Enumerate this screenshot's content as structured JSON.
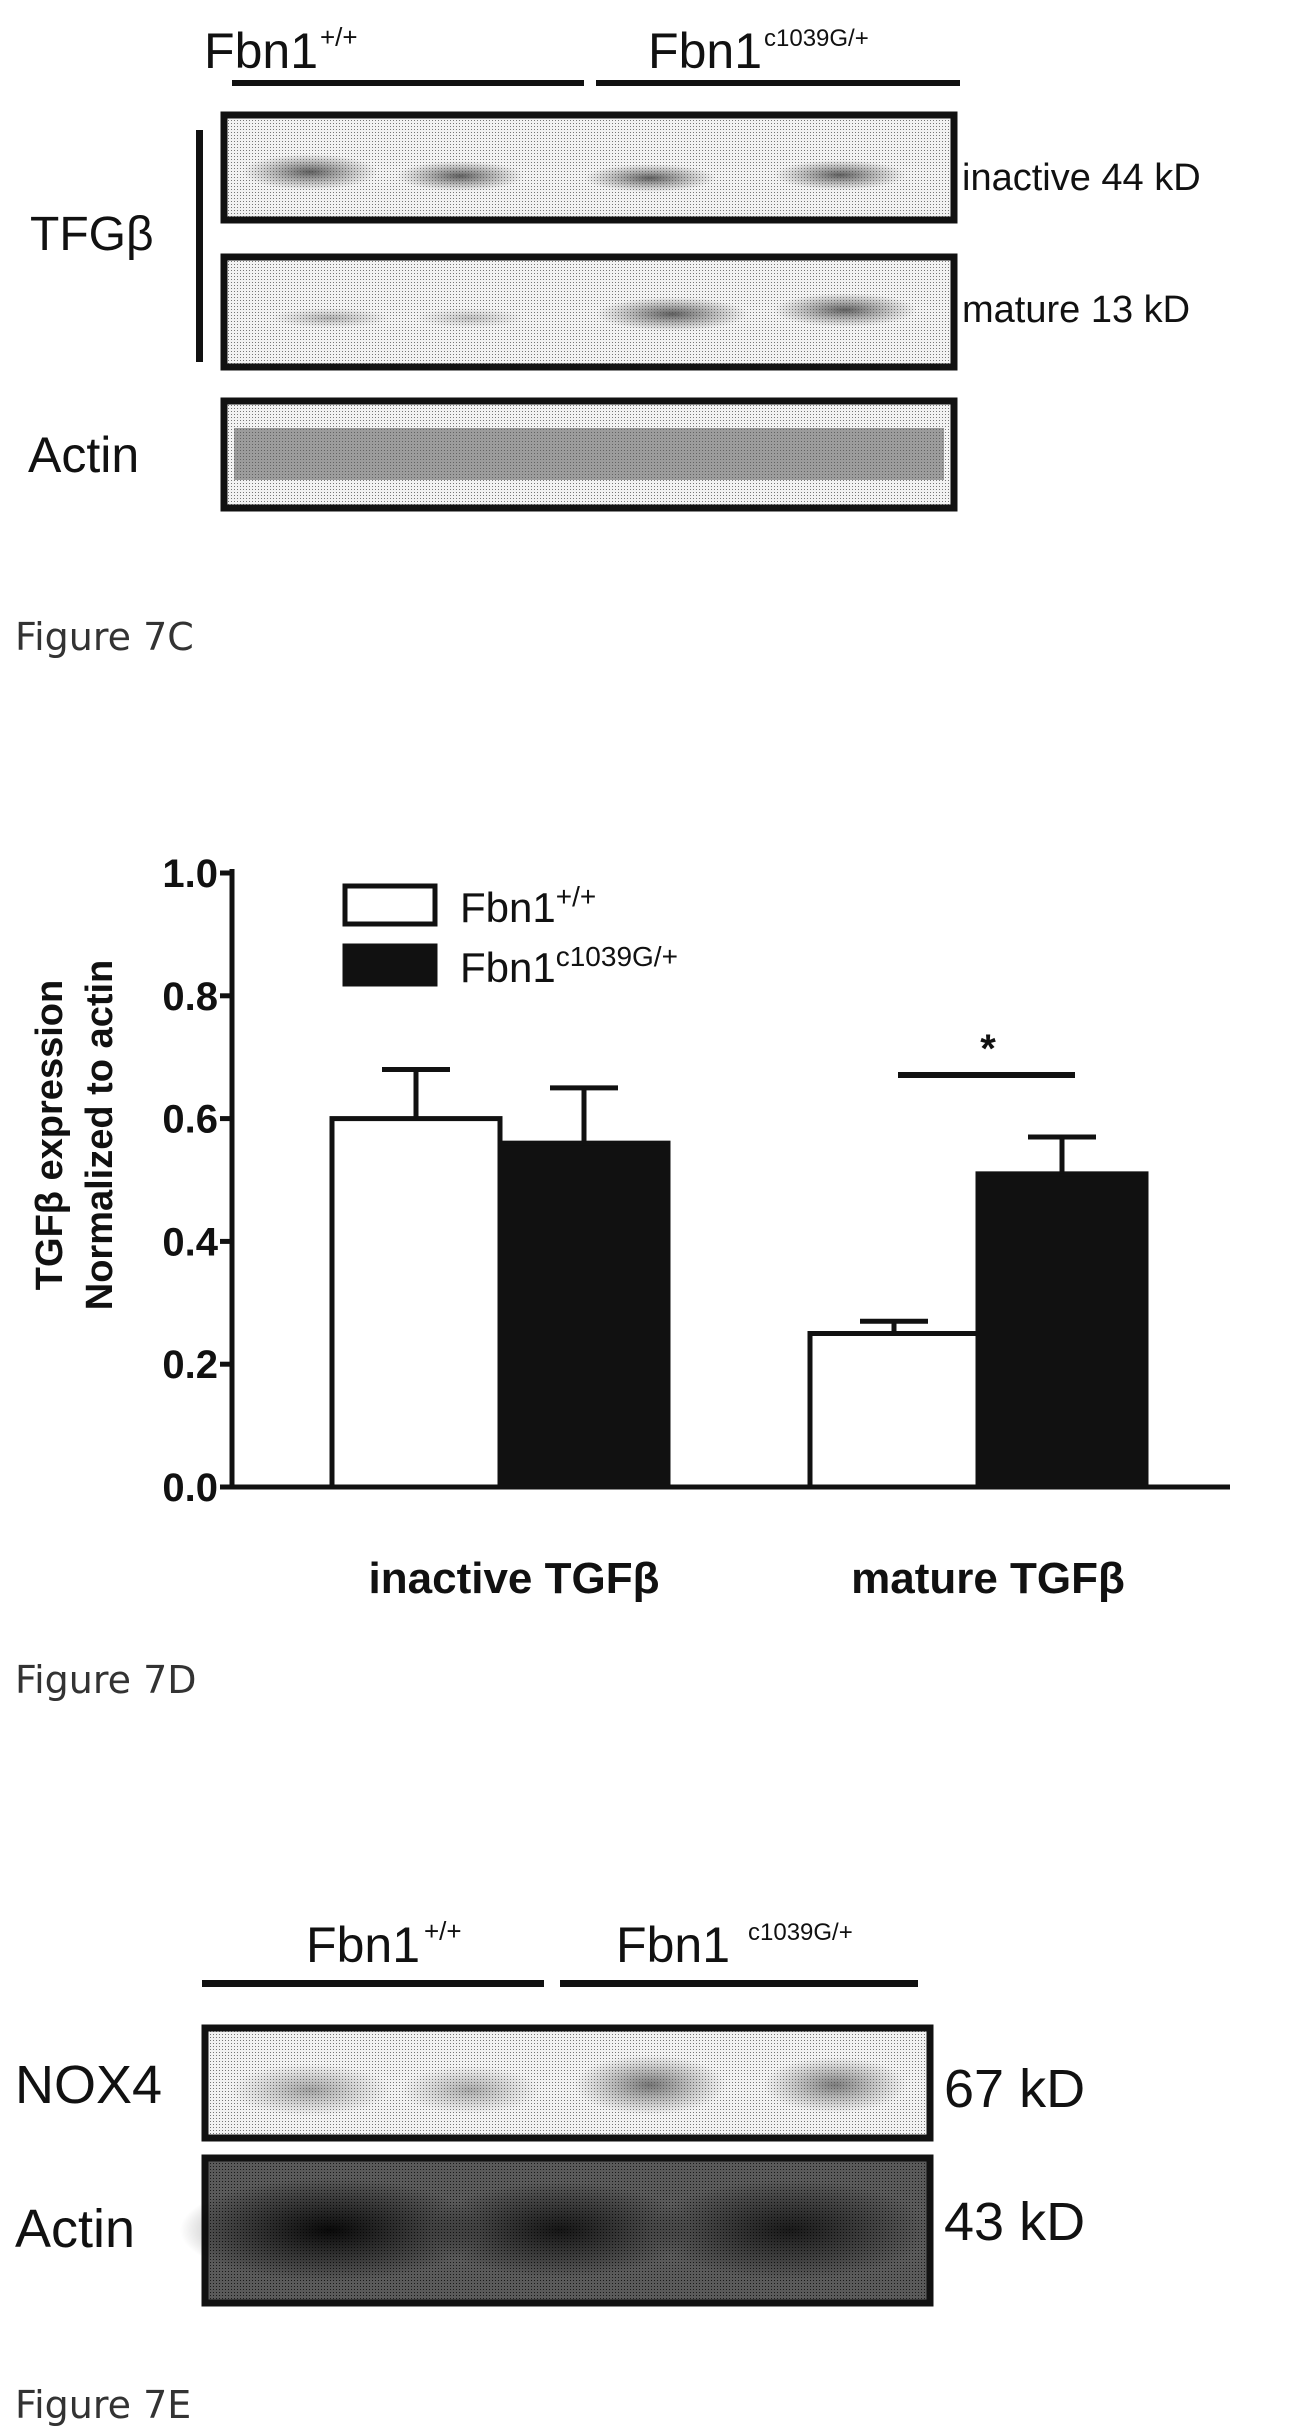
{
  "figure_7c": {
    "lane_group_left": "Fbn1",
    "lane_group_left_sup": "+/+",
    "lane_group_right": "Fbn1",
    "lane_group_right_sup": "c1039G/+",
    "target_label": "TFGβ",
    "band_inactive": "inactive 44 kD",
    "band_mature": "mature 13 kD",
    "loading_label": "Actin",
    "caption": "Figure 7C"
  },
  "figure_7d": {
    "caption": "Figure 7D",
    "significance": "*",
    "chart_data": {
      "type": "bar",
      "categories": [
        "inactive TGFβ",
        "mature TGFβ"
      ],
      "series": [
        {
          "name": "Fbn1+/+",
          "values": [
            0.6,
            0.25
          ],
          "errors": [
            0.08,
            0.02
          ],
          "fill": "#ffffff"
        },
        {
          "name": "Fbn1c1039G/+",
          "values": [
            0.56,
            0.51
          ],
          "errors": [
            0.09,
            0.06
          ],
          "fill": "#111111"
        }
      ],
      "ylabel_line1": "TGFβ  expression",
      "ylabel_line2": "Normalized to actin",
      "ylim": [
        0,
        1.0
      ],
      "yticks": [
        "0.0",
        "0.2",
        "0.4",
        "0.6",
        "0.8",
        "1.0"
      ],
      "legend": [
        {
          "base": "Fbn1",
          "sup": "+/+"
        },
        {
          "base": "Fbn1",
          "sup": "c1039G/+"
        }
      ],
      "legend_position": "top-left",
      "grid": false
    }
  },
  "figure_7e": {
    "lane_group_left": "Fbn1",
    "lane_group_left_sup": "+/+",
    "lane_group_right": "Fbn1",
    "lane_group_right_sup": "c1039G/+",
    "target_label": "NOX4",
    "target_size": "67 kD",
    "loading_label": "Actin",
    "loading_size": "43 kD",
    "caption": "Figure 7E"
  }
}
